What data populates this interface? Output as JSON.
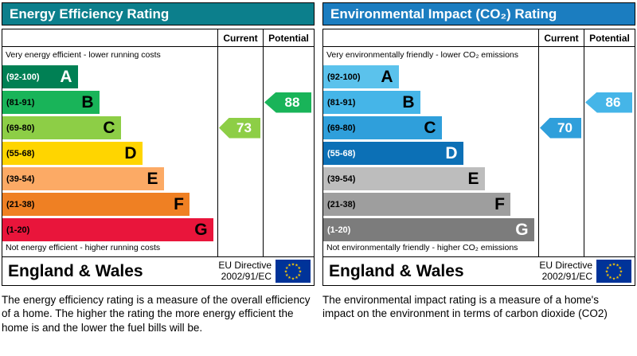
{
  "chart_data": [
    {
      "type": "bar",
      "title": "Energy Efficiency Rating",
      "categories": [
        "A (92-100)",
        "B (81-91)",
        "C (69-80)",
        "D (55-68)",
        "E (39-54)",
        "F (21-38)",
        "G (1-20)"
      ],
      "series": [
        {
          "name": "Current",
          "values": [
            73
          ],
          "band": "C"
        },
        {
          "name": "Potential",
          "values": [
            88
          ],
          "band": "B"
        }
      ],
      "ylim": [
        1,
        100
      ],
      "legend_position": "none"
    },
    {
      "type": "bar",
      "title": "Environmental Impact (CO2) Rating",
      "categories": [
        "A (92-100)",
        "B (81-91)",
        "C (69-80)",
        "D (55-68)",
        "E (39-54)",
        "F (21-38)",
        "G (1-20)"
      ],
      "series": [
        {
          "name": "Current",
          "values": [
            70
          ],
          "band": "C"
        },
        {
          "name": "Potential",
          "values": [
            86
          ],
          "band": "B"
        }
      ],
      "ylim": [
        1,
        100
      ],
      "legend_position": "none"
    }
  ],
  "left": {
    "title": "Energy Efficiency Rating",
    "title_color": "#0c7f8c",
    "columns": {
      "current": "Current",
      "potential": "Potential"
    },
    "top_note": "Very energy efficient - lower running costs",
    "bottom_note": "Not energy efficient - higher running costs",
    "bands": [
      {
        "range": "(92-100)",
        "letter": "A",
        "color": "#008054",
        "text_color": "#ffffff",
        "width_pct": 35
      },
      {
        "range": "(81-91)",
        "letter": "B",
        "color": "#19b459",
        "text_color": "#000000",
        "width_pct": 45
      },
      {
        "range": "(69-80)",
        "letter": "C",
        "color": "#8dce46",
        "text_color": "#000000",
        "width_pct": 55
      },
      {
        "range": "(55-68)",
        "letter": "D",
        "color": "#ffd500",
        "text_color": "#000000",
        "width_pct": 65
      },
      {
        "range": "(39-54)",
        "letter": "E",
        "color": "#fcaa65",
        "text_color": "#000000",
        "width_pct": 75
      },
      {
        "range": "(21-38)",
        "letter": "F",
        "color": "#ef8023",
        "text_color": "#000000",
        "width_pct": 87
      },
      {
        "range": "(1-20)",
        "letter": "G",
        "color": "#e9153b",
        "text_color": "#000000",
        "width_pct": 98
      }
    ],
    "current": {
      "value": "73",
      "band_index": 2,
      "color": "#8dce46"
    },
    "potential": {
      "value": "88",
      "band_index": 1,
      "color": "#19b459"
    },
    "footer": {
      "region": "England & Wales",
      "directive_line1": "EU Directive",
      "directive_line2": "2002/91/EC"
    },
    "description": "The energy efficiency rating is a measure of the overall efficiency of a home.  The higher the rating the more energy efficient the home is and the lower the fuel bills will be."
  },
  "right": {
    "title": "Environmental Impact (CO₂) Rating",
    "title_color": "#1b7dc0",
    "columns": {
      "current": "Current",
      "potential": "Potential"
    },
    "top_note": "Very environmentally friendly - lower CO₂ emissions",
    "bottom_note": "Not environmentally friendly - higher CO₂ emissions",
    "bands": [
      {
        "range": "(92-100)",
        "letter": "A",
        "color": "#5bc2ec",
        "text_color": "#000000",
        "width_pct": 35
      },
      {
        "range": "(81-91)",
        "letter": "B",
        "color": "#45b5e8",
        "text_color": "#000000",
        "width_pct": 45
      },
      {
        "range": "(69-80)",
        "letter": "C",
        "color": "#2f9fdb",
        "text_color": "#000000",
        "width_pct": 55
      },
      {
        "range": "(55-68)",
        "letter": "D",
        "color": "#0c70b6",
        "text_color": "#ffffff",
        "width_pct": 65
      },
      {
        "range": "(39-54)",
        "letter": "E",
        "color": "#bdbdbd",
        "text_color": "#000000",
        "width_pct": 75
      },
      {
        "range": "(21-38)",
        "letter": "F",
        "color": "#9e9e9e",
        "text_color": "#000000",
        "width_pct": 87
      },
      {
        "range": "(1-20)",
        "letter": "G",
        "color": "#7c7c7c",
        "text_color": "#ffffff",
        "width_pct": 98
      }
    ],
    "current": {
      "value": "70",
      "band_index": 2,
      "color": "#2f9fdb"
    },
    "potential": {
      "value": "86",
      "band_index": 1,
      "color": "#45b5e8"
    },
    "footer": {
      "region": "England & Wales",
      "directive_line1": "EU Directive",
      "directive_line2": "2002/91/EC"
    },
    "description": "The environmental impact rating is a measure of a home's impact on the environment in terms of carbon dioxide (CO2)"
  }
}
